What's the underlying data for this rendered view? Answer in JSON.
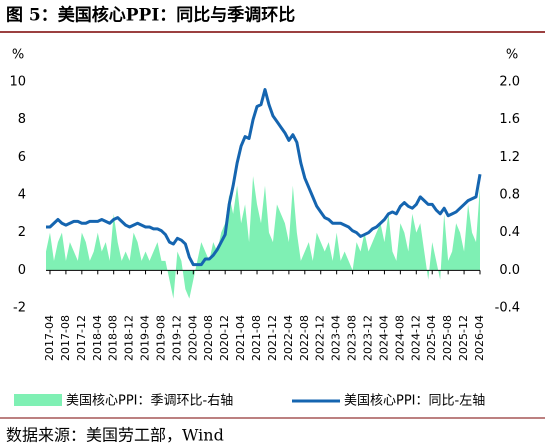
{
  "chart_data": {
    "type": "area-line",
    "title": "图 5：美国核心PPI：同比与季调环比",
    "ylabel": "%",
    "y2label": "%",
    "source": "数据来源：美国劳工部，Wind",
    "ylim": [
      -2,
      10
    ],
    "yticks": [
      -2,
      0,
      2,
      4,
      6,
      8,
      10
    ],
    "y2lim": [
      -0.4,
      2.0
    ],
    "y2ticks": [
      -0.4,
      {
        "value": 0,
        "label": "0.0"
      },
      0.4,
      0.8,
      1.2,
      1.6,
      {
        "value": 2,
        "label": "2.0"
      }
    ],
    "categories": [
      null,
      "2017-04",
      null,
      null,
      null,
      "2017-08",
      null,
      null,
      null,
      "2017-12",
      null,
      null,
      null,
      "2018-04",
      null,
      null,
      null,
      "2018-08",
      null,
      null,
      null,
      "2018-12",
      null,
      null,
      null,
      "2019-04",
      null,
      null,
      null,
      "2019-08",
      null,
      null,
      null,
      "2019-12",
      null,
      null,
      null,
      "2020-04",
      null,
      null,
      null,
      "2020-08",
      null,
      null,
      null,
      "2020-12",
      null,
      null,
      null,
      "2021-04",
      null,
      null,
      null,
      "2021-08",
      null,
      null,
      null,
      "2021-12",
      null,
      null,
      null,
      "2022-04",
      null,
      null,
      null,
      "2022-08",
      null,
      null,
      null,
      "2022-12",
      null,
      null,
      null,
      "2023-04",
      null,
      null,
      null,
      "2023-08",
      null,
      null,
      null,
      "2023-12",
      null,
      null,
      null,
      "2024-04",
      null,
      null,
      null,
      "2024-08",
      null,
      null,
      null,
      "2024-12",
      null,
      null,
      null,
      "2025-04",
      null,
      null,
      null,
      "2025-08",
      null,
      null,
      null,
      "2025-12",
      null,
      null,
      null,
      "2026-04"
    ],
    "series": [
      {
        "name": "美国核心PPI：季调环比-右轴",
        "color": "#7ff0b4",
        "kind": "area",
        "axis": "y2",
        "values": [
          0.2,
          0.4,
          0.1,
          0.3,
          0.4,
          0.1,
          0.3,
          0.2,
          0.1,
          0.4,
          0.3,
          0.1,
          0.2,
          0.4,
          0.2,
          0.3,
          0.1,
          0.6,
          0.3,
          0.1,
          0.2,
          0.1,
          0.4,
          0.3,
          0.1,
          0.2,
          0.1,
          0.2,
          0.3,
          0.1,
          0.1,
          -0.1,
          -0.3,
          0.2,
          0.1,
          -0.2,
          -0.3,
          -0.1,
          0.1,
          0.3,
          0.2,
          0.1,
          0.3,
          0.2,
          0.4,
          0.5,
          0.8,
          0.6,
          0.9,
          0.5,
          0.7,
          0.3,
          1.0,
          0.7,
          0.5,
          0.9,
          0.4,
          0.3,
          0.7,
          0.6,
          0.5,
          0.3,
          0.9,
          0.4,
          0.1,
          0.2,
          0.3,
          0.1,
          0.4,
          0.3,
          0.2,
          0.3,
          0.1,
          0.4,
          0.1,
          0.2,
          0.1,
          0.0,
          0.3,
          0.2,
          0.4,
          0.2,
          0.3,
          0.4,
          0.5,
          0.3,
          0.6,
          0.2,
          0.1,
          0.5,
          0.4,
          0.2,
          0.6,
          0.4,
          0.5,
          0.2,
          -0.1,
          0.3,
          0.1,
          -0.1,
          0.6,
          0.1,
          0.2,
          0.5,
          0.4,
          0.2,
          0.7,
          0.4,
          0.3,
          0.9
        ]
      },
      {
        "name": "美国核心PPI：同比-左轴",
        "color": "#1565b0",
        "kind": "line",
        "values": [
          2.3,
          2.3,
          2.5,
          2.7,
          2.5,
          2.4,
          2.5,
          2.6,
          2.6,
          2.5,
          2.5,
          2.6,
          2.6,
          2.6,
          2.7,
          2.6,
          2.5,
          2.7,
          2.8,
          2.6,
          2.4,
          2.3,
          2.4,
          2.5,
          2.4,
          2.3,
          2.3,
          2.2,
          2.2,
          2.1,
          1.9,
          1.5,
          1.4,
          1.7,
          1.6,
          1.4,
          0.7,
          0.3,
          0.3,
          0.3,
          0.6,
          0.6,
          0.8,
          1.1,
          1.5,
          1.9,
          3.5,
          4.5,
          5.7,
          6.6,
          7.1,
          7.0,
          8.0,
          8.7,
          8.8,
          9.6,
          8.8,
          8.2,
          7.9,
          7.6,
          7.3,
          6.9,
          7.2,
          6.8,
          5.7,
          4.9,
          4.4,
          3.9,
          3.4,
          3.1,
          2.8,
          2.7,
          2.5,
          2.5,
          2.5,
          2.4,
          2.3,
          2.1,
          2.0,
          1.8,
          1.9,
          2.0,
          2.2,
          2.3,
          2.5,
          2.7,
          3.0,
          3.1,
          3.0,
          3.4,
          3.6,
          3.4,
          3.3,
          3.5,
          3.9,
          3.7,
          3.5,
          3.5,
          3.2,
          3.0,
          3.3,
          2.9,
          3.0,
          3.1,
          3.3,
          3.5,
          3.7,
          3.8,
          3.9,
          5.1
        ]
      }
    ]
  }
}
